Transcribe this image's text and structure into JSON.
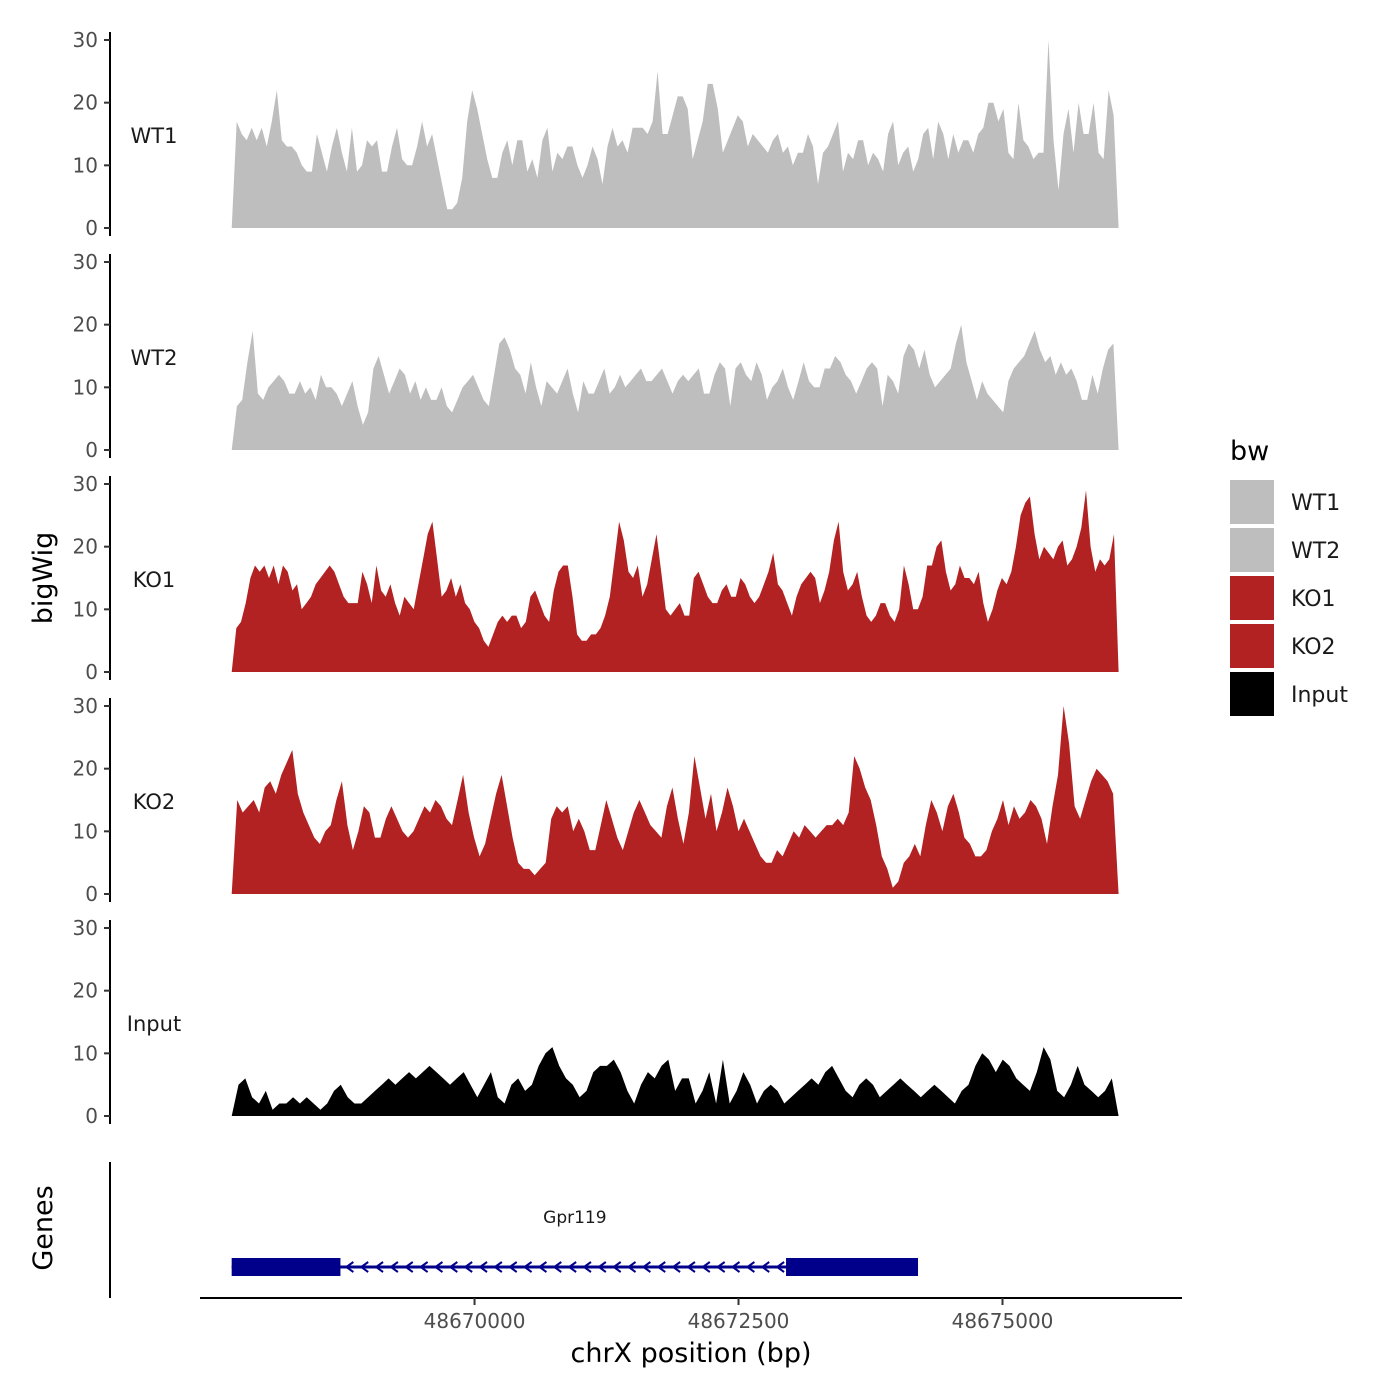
{
  "chart_data": {
    "type": "area",
    "xlabel": "chrX position (bp)",
    "ylabel": "bigWig",
    "genes_label": "Genes",
    "xlim": [
      48667400,
      48676700
    ],
    "ylim": [
      0,
      30
    ],
    "x_ticks": [
      48670000,
      48672500,
      48675000
    ],
    "x_tick_labels": [
      "48670000",
      "48672500",
      "48675000"
    ],
    "y_ticks": [
      0,
      10,
      20,
      30
    ],
    "y_tick_labels": [
      "0",
      "10",
      "20",
      "30"
    ],
    "x_start": 48667700,
    "x_end": 48676100,
    "legend": {
      "title": "bw",
      "entries": [
        {
          "label": "WT1",
          "color": "#BEBEBE"
        },
        {
          "label": "WT2",
          "color": "#BEBEBE"
        },
        {
          "label": "KO1",
          "color": "#B22222"
        },
        {
          "label": "KO2",
          "color": "#B22222"
        },
        {
          "label": "Input",
          "color": "#000000"
        }
      ]
    },
    "series": [
      {
        "name": "WT1",
        "color": "#BEBEBE",
        "values": [
          0,
          17,
          15,
          14,
          16,
          14,
          16,
          13,
          17,
          22,
          14,
          13,
          13,
          12,
          10,
          9,
          9,
          15,
          12,
          9,
          13,
          16,
          12,
          9,
          16,
          9,
          10,
          14,
          13,
          14,
          9,
          9,
          13,
          16,
          11,
          10,
          10,
          13,
          17,
          13,
          15,
          11,
          7,
          3,
          3,
          4,
          8,
          17,
          22,
          19,
          15,
          11,
          8,
          8,
          12,
          14,
          10,
          14,
          14,
          9,
          11,
          8,
          14,
          16,
          9,
          12,
          11,
          13,
          13,
          10,
          8,
          10,
          13,
          11,
          7,
          13,
          16,
          13,
          14,
          12,
          16,
          16,
          16,
          15,
          17,
          25,
          15,
          15,
          18,
          21,
          21,
          19,
          11,
          14,
          17,
          23,
          23,
          19,
          12,
          14,
          16,
          18,
          17,
          13,
          15,
          14,
          13,
          12,
          14,
          15,
          12,
          13,
          10,
          12,
          12,
          15,
          13,
          7,
          12,
          13,
          15,
          17,
          9,
          12,
          11,
          14,
          14,
          10,
          12,
          11,
          9,
          15,
          17,
          10,
          12,
          13,
          9,
          11,
          15,
          16,
          11,
          17,
          15,
          11,
          15,
          12,
          14,
          14,
          12,
          15,
          16,
          20,
          20,
          17,
          19,
          12,
          11,
          20,
          14,
          13,
          11,
          12,
          12,
          30,
          14,
          6,
          15,
          19,
          12,
          20,
          15,
          15,
          20,
          12,
          11,
          22,
          18,
          0
        ]
      },
      {
        "name": "WT2",
        "color": "#BEBEBE",
        "values": [
          0,
          7,
          8,
          14,
          19,
          9,
          8,
          10,
          11,
          12,
          11,
          9,
          9,
          11,
          9,
          10,
          8,
          12,
          10,
          10,
          9,
          7,
          9,
          11,
          7,
          4,
          6,
          13,
          15,
          12,
          9,
          11,
          13,
          12,
          9,
          11,
          8,
          10,
          8,
          8,
          10,
          7,
          6,
          8,
          10,
          11,
          12,
          10,
          8,
          7,
          12,
          17,
          18,
          16,
          13,
          12,
          9,
          14,
          10,
          7,
          11,
          10,
          9,
          11,
          13,
          9,
          6,
          11,
          9,
          9,
          11,
          13,
          9,
          10,
          12,
          10,
          11,
          12,
          13,
          11,
          11,
          12,
          13,
          11,
          9,
          11,
          12,
          11,
          12,
          13,
          9,
          9,
          12,
          14,
          13,
          7,
          13,
          14,
          12,
          11,
          14,
          12,
          8,
          10,
          11,
          13,
          10,
          8,
          11,
          14,
          11,
          10,
          10,
          13,
          13,
          15,
          14,
          12,
          11,
          9,
          11,
          13,
          14,
          13,
          7,
          12,
          11,
          9,
          15,
          17,
          16,
          13,
          16,
          12,
          10,
          11,
          12,
          13,
          17,
          20,
          14,
          11,
          8,
          11,
          9,
          8,
          7,
          6,
          11,
          13,
          14,
          15,
          17,
          19,
          16,
          14,
          15,
          12,
          14,
          12,
          13,
          11,
          8,
          8,
          12,
          9,
          13,
          16,
          17,
          0
        ]
      },
      {
        "name": "KO1",
        "color": "#B22222",
        "values": [
          0,
          7,
          8,
          11,
          15,
          17,
          16,
          17,
          15,
          17,
          14,
          17,
          16,
          13,
          14,
          10,
          11,
          12,
          14,
          15,
          16,
          17,
          16,
          14,
          12,
          11,
          11,
          11,
          16,
          14,
          11,
          17,
          13,
          12,
          14,
          11,
          9,
          12,
          11,
          10,
          14,
          18,
          22,
          24,
          18,
          12,
          13,
          15,
          12,
          14,
          11,
          10,
          8,
          7,
          5,
          4,
          6,
          8,
          9,
          8,
          9,
          9,
          7,
          8,
          12,
          13,
          11,
          9,
          8,
          13,
          16,
          17,
          17,
          12,
          6,
          5,
          5,
          6,
          6,
          7,
          9,
          12,
          18,
          24,
          21,
          16,
          15,
          17,
          12,
          14,
          18,
          22,
          16,
          10,
          9,
          10,
          11,
          9,
          9,
          15,
          16,
          14,
          12,
          11,
          11,
          13,
          14,
          12,
          12,
          15,
          14,
          12,
          11,
          12,
          14,
          16,
          19,
          14,
          13,
          11,
          9,
          12,
          14,
          15,
          16,
          15,
          11,
          13,
          16,
          21,
          24,
          16,
          13,
          14,
          16,
          12,
          9,
          8,
          9,
          11,
          11,
          9,
          8,
          10,
          17,
          14,
          10,
          10,
          12,
          17,
          17,
          20,
          21,
          16,
          13,
          14,
          17,
          15,
          15,
          14,
          16,
          11,
          8,
          10,
          13,
          15,
          14,
          16,
          20,
          25,
          27,
          28,
          22,
          18,
          20,
          19,
          18,
          20,
          21,
          17,
          18,
          20,
          23,
          29,
          20,
          16,
          18,
          17,
          18,
          22,
          0
        ]
      },
      {
        "name": "KO2",
        "color": "#B22222",
        "values": [
          0,
          15,
          13,
          14,
          15,
          13,
          17,
          18,
          16,
          19,
          21,
          23,
          16,
          13,
          11,
          9,
          8,
          10,
          11,
          15,
          18,
          11,
          7,
          10,
          14,
          13,
          9,
          9,
          12,
          14,
          12,
          10,
          9,
          10,
          12,
          14,
          13,
          15,
          14,
          12,
          11,
          15,
          19,
          13,
          9,
          6,
          8,
          12,
          16,
          19,
          14,
          9,
          5,
          4,
          4,
          3,
          4,
          5,
          12,
          14,
          13,
          14,
          10,
          12,
          10,
          7,
          7,
          11,
          15,
          12,
          9,
          7,
          10,
          13,
          15,
          13,
          11,
          10,
          9,
          14,
          17,
          12,
          8,
          13,
          22,
          17,
          12,
          16,
          10,
          13,
          17,
          14,
          10,
          12,
          10,
          8,
          6,
          5,
          5,
          7,
          6,
          8,
          10,
          9,
          11,
          10,
          9,
          10,
          11,
          11,
          12,
          11,
          13,
          22,
          20,
          17,
          15,
          11,
          6,
          4,
          1,
          2,
          5,
          6,
          8,
          6,
          11,
          15,
          13,
          10,
          14,
          16,
          13,
          9,
          8,
          6,
          6,
          7,
          10,
          12,
          15,
          11,
          14,
          12,
          13,
          15,
          14,
          12,
          8,
          14,
          19,
          30,
          24,
          14,
          12,
          15,
          18,
          20,
          19,
          18,
          16,
          0
        ]
      },
      {
        "name": "Input",
        "color": "#000000",
        "values": [
          0,
          5,
          6,
          3,
          2,
          4,
          1,
          2,
          2,
          3,
          2,
          3,
          2,
          1,
          2,
          4,
          5,
          3,
          2,
          2,
          3,
          4,
          5,
          6,
          5,
          6,
          7,
          6,
          7,
          8,
          7,
          6,
          5,
          6,
          7,
          5,
          3,
          5,
          7,
          3,
          2,
          5,
          6,
          4,
          5,
          8,
          10,
          11,
          8,
          6,
          5,
          3,
          4,
          7,
          8,
          8,
          9,
          7,
          4,
          2,
          5,
          7,
          6,
          8,
          9,
          4,
          6,
          6,
          2,
          4,
          7,
          2,
          9,
          2,
          4,
          7,
          5,
          2,
          4,
          5,
          4,
          2,
          3,
          4,
          5,
          6,
          5,
          7,
          8,
          6,
          4,
          3,
          5,
          6,
          5,
          3,
          4,
          5,
          6,
          5,
          4,
          3,
          4,
          5,
          4,
          3,
          2,
          4,
          5,
          8,
          10,
          9,
          7,
          9,
          8,
          6,
          5,
          4,
          7,
          11,
          9,
          4,
          3,
          5,
          8,
          5,
          4,
          3,
          4,
          6,
          0
        ]
      }
    ],
    "gene": {
      "name": "Gpr119",
      "strand": "-",
      "start": 48667700,
      "end": 48674200,
      "exons": [
        [
          48667700,
          48668730
        ],
        [
          48672950,
          48674200
        ]
      ],
      "color": "#00008B"
    }
  }
}
